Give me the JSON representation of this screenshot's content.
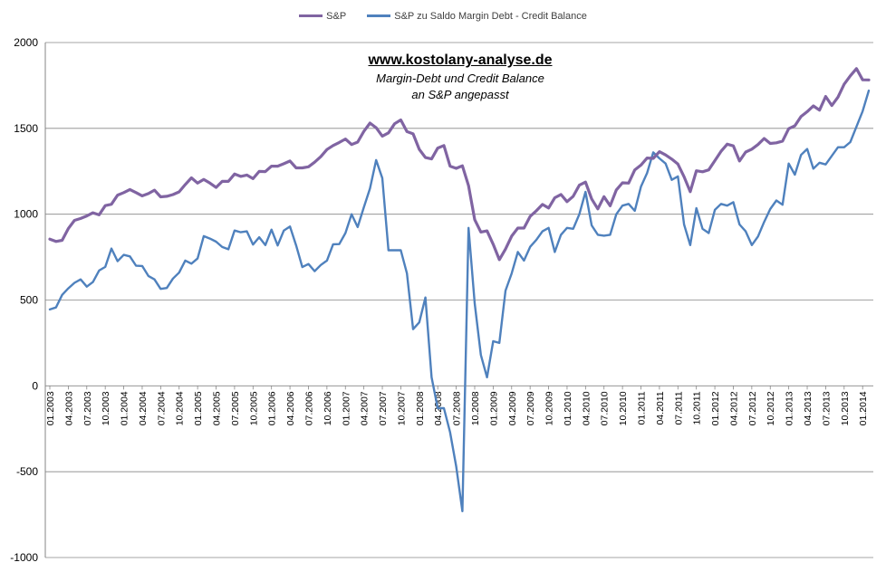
{
  "chart_data": {
    "type": "line",
    "title": "",
    "xlabel": "",
    "ylabel": "",
    "ylim": [
      -1000,
      2000
    ],
    "yticks": [
      -1000,
      -500,
      0,
      500,
      1000,
      1500,
      2000
    ],
    "grid": "horizontal",
    "legend_position": "top",
    "x_tick_labels": [
      "01.2003",
      "04.2003",
      "07.2003",
      "10.2003",
      "01.2004",
      "04.2004",
      "07.2004",
      "10.2004",
      "01.2005",
      "04.2005",
      "07.2005",
      "10.2005",
      "01.2006",
      "04.2006",
      "07.2006",
      "10.2006",
      "01.2007",
      "04.2007",
      "07.2007",
      "10.2007",
      "01.2008",
      "04.2008",
      "07.2008",
      "10.2008",
      "01.2009",
      "04.2009",
      "07.2009",
      "10.2009",
      "01.2010",
      "04.2010",
      "07.2010",
      "10.2010",
      "01.2011",
      "04.2011",
      "07.2011",
      "10.2011",
      "01.2012",
      "04.2012",
      "07.2012",
      "10.2012",
      "01.2013",
      "04.2013",
      "07.2013",
      "10.2013",
      "01.2014"
    ],
    "annotations": {
      "website": "www.kostolany-analyse.de",
      "line1": "Margin-Debt und Credit Balance",
      "line2": "an S&P angepasst"
    },
    "series": [
      {
        "name": "S&P",
        "color": "#8064A2",
        "values": [
          855,
          841,
          848,
          916,
          964,
          975,
          990,
          1008,
          996,
          1050,
          1058,
          1111,
          1126,
          1144,
          1126,
          1107,
          1120,
          1140,
          1101,
          1104,
          1114,
          1130,
          1173,
          1212,
          1181,
          1203,
          1181,
          1156,
          1191,
          1191,
          1234,
          1220,
          1228,
          1207,
          1249,
          1248,
          1280,
          1280,
          1294,
          1310,
          1270,
          1270,
          1276,
          1303,
          1335,
          1377,
          1400,
          1418,
          1438,
          1406,
          1420,
          1482,
          1531,
          1504,
          1455,
          1474,
          1527,
          1549,
          1481,
          1468,
          1378,
          1330,
          1322,
          1385,
          1400,
          1280,
          1267,
          1282,
          1166,
          968,
          896,
          903,
          825,
          735,
          797,
          872,
          919,
          919,
          987,
          1020,
          1057,
          1036,
          1096,
          1115,
          1073,
          1104,
          1169,
          1187,
          1089,
          1031,
          1102,
          1049,
          1141,
          1183,
          1181,
          1258,
          1286,
          1327,
          1325,
          1364,
          1345,
          1321,
          1292,
          1218,
          1131,
          1253,
          1247,
          1258,
          1312,
          1366,
          1408,
          1398,
          1310,
          1362,
          1379,
          1406,
          1441,
          1412,
          1416,
          1426,
          1498,
          1515,
          1569,
          1597,
          1631,
          1606,
          1686,
          1633,
          1682,
          1757,
          1806,
          1848,
          1783,
          1782
        ]
      },
      {
        "name": "S&P zu Saldo Margin Debt - Credit Balance",
        "color": "#4F81BD",
        "values": [
          445,
          457,
          530,
          568,
          600,
          620,
          578,
          605,
          672,
          693,
          800,
          726,
          763,
          754,
          700,
          698,
          640,
          620,
          565,
          570,
          625,
          660,
          730,
          712,
          742,
          872,
          858,
          840,
          809,
          796,
          905,
          895,
          900,
          823,
          866,
          820,
          910,
          818,
          905,
          928,
          818,
          692,
          710,
          668,
          704,
          730,
          825,
          826,
          890,
          1000,
          925,
          1040,
          1150,
          1315,
          1210,
          790,
          790,
          790,
          655,
          330,
          370,
          515,
          50,
          -130,
          -130,
          -270,
          -470,
          -730,
          920,
          480,
          180,
          50,
          260,
          250,
          555,
          655,
          780,
          730,
          810,
          850,
          900,
          920,
          780,
          880,
          920,
          915,
          1000,
          1130,
          935,
          880,
          875,
          880,
          1000,
          1050,
          1060,
          1020,
          1160,
          1240,
          1360,
          1325,
          1295,
          1200,
          1220,
          940,
          820,
          1035,
          915,
          890,
          1025,
          1060,
          1050,
          1070,
          940,
          900,
          820,
          870,
          955,
          1030,
          1080,
          1055,
          1295,
          1230,
          1345,
          1380,
          1265,
          1300,
          1290,
          1340,
          1390,
          1390,
          1420,
          1510,
          1600,
          1720
        ]
      }
    ]
  }
}
